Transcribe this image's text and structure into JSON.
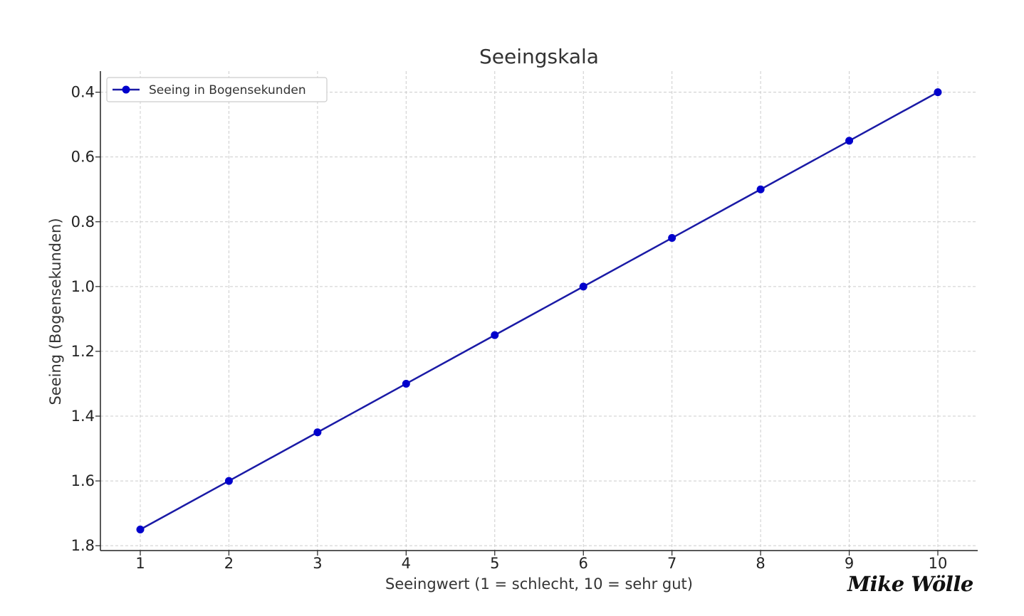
{
  "chart_data": {
    "type": "line",
    "title": "Seeingskala",
    "xlabel": "Seeingwert (1 = schlecht, 10 = sehr gut)",
    "ylabel": "Seeing (Bogensekunden)",
    "x": [
      1,
      2,
      3,
      4,
      5,
      6,
      7,
      8,
      9,
      10
    ],
    "series": [
      {
        "name": "Seeing in Bogensekunden",
        "values": [
          1.75,
          1.6,
          1.45,
          1.3,
          1.15,
          1.0,
          0.85,
          0.7,
          0.55,
          0.4
        ],
        "color": "#0000cc",
        "line_color": "#1a1aa6",
        "marker": "circle"
      }
    ],
    "xlim": [
      0.55,
      10.45
    ],
    "ylim": [
      1.815,
      0.335
    ],
    "y_inverted": true,
    "xticks": [
      "1",
      "2",
      "3",
      "4",
      "5",
      "6",
      "7",
      "8",
      "9",
      "10"
    ],
    "yticks": [
      "0.4",
      "0.6",
      "0.8",
      "1.0",
      "1.2",
      "1.4",
      "1.6",
      "1.8"
    ],
    "ytick_values": [
      0.4,
      0.6,
      0.8,
      1.0,
      1.2,
      1.4,
      1.6,
      1.8
    ],
    "grid": true,
    "legend_position": "top-left"
  },
  "signature": "Mike Wölle",
  "colors": {
    "grid": "#cccccc",
    "axis": "#222222",
    "text": "#333333"
  }
}
